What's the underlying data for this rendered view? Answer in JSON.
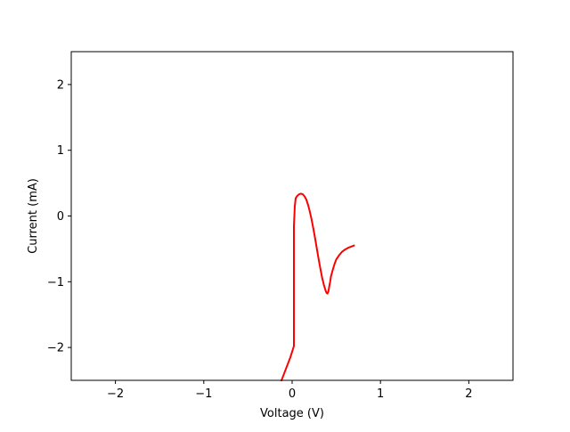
{
  "chart_data": {
    "type": "line",
    "title": "",
    "xlabel": "Voltage (V)",
    "ylabel": "Current (mA)",
    "xlim": [
      -2.5,
      2.5
    ],
    "ylim": [
      -2.5,
      2.5
    ],
    "xticks": [
      -2,
      -1,
      0,
      1,
      2
    ],
    "yticks": [
      -2,
      -1,
      0,
      1,
      2
    ],
    "xtick_labels": [
      "−2",
      "−1",
      "0",
      "1",
      "2"
    ],
    "ytick_labels": [
      "−2",
      "−1",
      "0",
      "1",
      "2"
    ],
    "grid": false,
    "legend": "none",
    "series": [
      {
        "color": "#ff0000",
        "x": [
          -0.12,
          -0.02,
          0.02,
          0.02,
          0.02,
          0.03,
          0.04,
          0.06,
          0.08,
          0.1,
          0.12,
          0.14,
          0.16,
          0.18,
          0.2,
          0.22,
          0.24,
          0.26,
          0.28,
          0.3,
          0.32,
          0.34,
          0.36,
          0.38,
          0.39,
          0.4,
          0.41,
          0.42,
          0.43,
          0.44,
          0.46,
          0.48,
          0.5,
          0.53,
          0.56,
          0.6,
          0.64,
          0.68,
          0.7
        ],
        "y": [
          -2.5,
          -2.15,
          -1.98,
          -1.2,
          -0.15,
          0.15,
          0.27,
          0.31,
          0.33,
          0.34,
          0.33,
          0.3,
          0.25,
          0.17,
          0.07,
          -0.05,
          -0.19,
          -0.34,
          -0.5,
          -0.66,
          -0.8,
          -0.94,
          -1.05,
          -1.14,
          -1.17,
          -1.18,
          -1.15,
          -1.07,
          -1.0,
          -0.92,
          -0.82,
          -0.73,
          -0.66,
          -0.6,
          -0.55,
          -0.51,
          -0.48,
          -0.46,
          -0.45
        ]
      }
    ]
  }
}
